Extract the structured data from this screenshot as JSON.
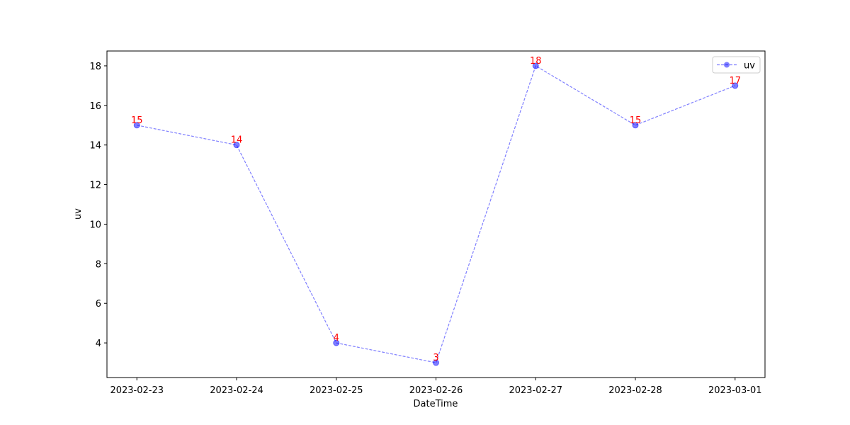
{
  "chart_data": {
    "type": "line",
    "categories": [
      "2023-02-23",
      "2023-02-24",
      "2023-02-25",
      "2023-02-26",
      "2023-02-27",
      "2023-02-28",
      "2023-03-01"
    ],
    "series": [
      {
        "name": "uv",
        "color": "#0000ff",
        "values": [
          15,
          14,
          4,
          3,
          18,
          15,
          17
        ]
      }
    ],
    "label_color": "#ff0000",
    "x_label": "DateTime",
    "y_label": "uv",
    "ylim": [
      2.25,
      18.75
    ],
    "yticks": [
      4,
      6,
      8,
      10,
      12,
      14,
      16,
      18
    ],
    "legend": "upper right"
  }
}
